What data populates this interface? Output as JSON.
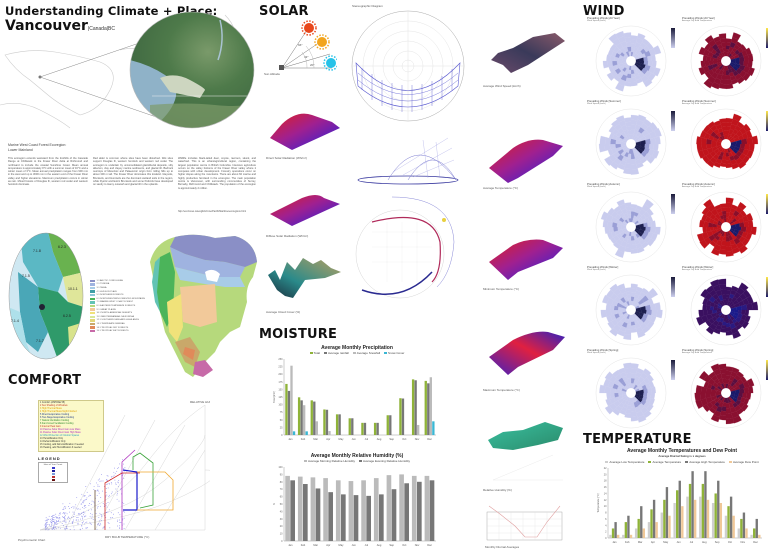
{
  "header": {
    "title": "Understanding Climate + Place:",
    "city": "Vancouver",
    "region": "|Canada|BC"
  },
  "ecoregion": {
    "heading_line1": "Marine West Coast Forest Ecoregion:",
    "heading_line2": "Lower Mainland",
    "columns": [
      "This ecoregion extends westward from the foothills of the Cascade Range at Chilliwack to the Fraser River delta at Richmond and northward to include the coastal Sunshine Coast. Mean annual temperature is approximately 9°C with a summer mean of 16°C and a winter mean of 3°C. Mean annual precipitation ranges from 900 mm in the west and up to 3000 mm in the eastern end of the Fraser River valley and higher elevations. Maximum precipitation occurs in winter as rain. Mixed forests of Douglas fir, western red cedar and western hemlock dominate.",
      "Red alder is common where sites have been disturbed. Wet sites support Douglas fir, western hemlock and western red cedar. The ecoregion is underlain by unconsolidated glaciofluvial deposits, silty alluvium, clay and clayey marine sediments, and glacial till. Bedrock outcrops of Mesozoic and Palaeozoic origin form rolling hills up to about 300 m tall. The Fraser River dominates this lowland. Gleysols, Brunisols, and Humisols are the dominant wetland soils in the region, while Dystric and Eutric Brunisols and some Podzols have developed on sandy to loamy outwash and glacial till in the uplands.",
      "Wildlife includes black-tailed deer, coyote, raccoon, skunk, and waterfowl. This is an urban/agricultural region, containing the largest population centre in British Columbia. Intensive agriculture occurs on the valley bottoms of the Fraser River valley where it competes with urban development. Forestry operations occur on higher slopes along the mountains. There are about 60 marine and highly productive farmland in the ecoregion. The main population centre is Vancouver, with surrounding communities of Surrey, Burnaby, Richmond and Chilliwack. The population of the ecoregion is approximately 2 million."
    ],
    "source_note": "http://ecozones.ca/english/zone/PacificMaritime/ecoregions.html"
  },
  "ecozone_map": {
    "zones": [
      "7.1.8",
      "6.2.3",
      "6.2.5",
      "10.1.1",
      "7.1.5",
      "7.1.7",
      "7.1.4"
    ],
    "legend": [
      {
        "label": "1.1 ARCTIC CORDILLERA",
        "color": "#8a8fc6"
      },
      {
        "label": "2.1 TUNDRA",
        "color": "#9fb3e0"
      },
      {
        "label": "3.1 TAIGA",
        "color": "#a8cce8"
      },
      {
        "label": "4.1 HUDSON PLAIN",
        "color": "#3f9fa6"
      },
      {
        "label": "5.1 NORTHERN FORESTS",
        "color": "#8cc9d9"
      },
      {
        "label": "6.1 NORTHWESTERN FORESTED MOUNTAINS",
        "color": "#4bb45a"
      },
      {
        "label": "7.1 MARINE WEST COAST FOREST",
        "color": "#62c3b5"
      },
      {
        "label": "8.1 EASTERN TEMPERATE FORESTS",
        "color": "#b6d97c"
      },
      {
        "label": "9.1 GREAT PLAINS",
        "color": "#f2c99a"
      },
      {
        "label": "10.1 NORTH AMERICAN DESERTS",
        "color": "#f0e27a"
      },
      {
        "label": "11.1 MEDITERRANEAN CALIFORNIA",
        "color": "#d9e89a"
      },
      {
        "label": "12.1 SOUTHERN SEMI-ARID HIGHLANDS",
        "color": "#e3d77a"
      },
      {
        "label": "13.1 TEMPERATE SIERRAS",
        "color": "#c9a86a"
      },
      {
        "label": "14.1 TROPICAL DRY FORESTS",
        "color": "#e08a5a"
      },
      {
        "label": "15.1 TROPICAL WET FORESTS",
        "color": "#c76aa8"
      }
    ]
  },
  "sections": {
    "comfort": "COMFORT",
    "solar": "SOLAR",
    "moisture": "MOISTURE",
    "wind": "WIND",
    "temperature": "TEMPERATURE"
  },
  "comfort": {
    "caption": "Psychrometric Chart",
    "legend_title": "LEGEND",
    "legend_sub": "Hour of Year Count",
    "strategies": [
      "1 Comfort (ASHRAE 55)",
      "2 Sun Shading of Windows",
      "3 High Thermal Mass",
      "4 High Thermal Mass Night Flushed",
      "5 Direct Evaporative Cooling",
      "6 Two-Stage Evaporative Cooling",
      "7 Natural Ventilation Cooling",
      "8 Fan-Forced Ventilation Cooling",
      "9 Internal Heat Gain",
      "10 Passive Solar Direct Gain Low Mass",
      "11 Passive Solar Direct Gain High Mass",
      "12 Wind Protection of Outdoor Spaces",
      "13 Humidification Only",
      "14 Dehumidification Only",
      "15 Cooling, add Dehumidification if needed",
      "16 Heating, add Humidification if needed"
    ],
    "relative_humidity_label": "RELATIVE HUMIDITY",
    "xlabel": "DRY BULB TEMPERATURE (°C)",
    "ylabel": "HUMIDITY RATIO"
  },
  "solar": {
    "altitude_caption": "Sun Altitude",
    "angles": [
      "66°",
      "43°",
      "20°"
    ],
    "sun_colors": [
      "#e8471c",
      "#f2a51e",
      "#27c2e8"
    ],
    "stereographic_title": "Stereographic Diagram",
    "surface_captions": [
      "Direct Solar Radiation (Wh/m²)",
      "Diffuse Solar Radiation (Wh/m²)",
      "Average Cloud Cover (%)"
    ]
  },
  "surfaces_mid": {
    "captions": [
      "Average Wind Speed (km/h)",
      "Average Temperature (°C)",
      "Minimum Temperature (°C)",
      "Maximum Temperature (°C)",
      "Relative Humidity (%)",
      "Monthly Diurnal Averages"
    ]
  },
  "wind": {
    "roses": [
      {
        "title": "Prevailing Winds [All Year]",
        "sub": "Wind Speed (km/h)",
        "style": "blue"
      },
      {
        "title": "Prevailing Winds [All Year]",
        "sub": "Average Dry Bulb Temperature",
        "style": "heat-dark"
      },
      {
        "title": "Prevailing Winds [Summer]",
        "sub": "Wind Speed (km/h)",
        "style": "blue"
      },
      {
        "title": "Prevailing Winds [Summer]",
        "sub": "Average Dry Bulb Temperature",
        "style": "heat"
      },
      {
        "title": "Prevailing Winds [Autumn]",
        "sub": "Wind Speed (km/h)",
        "style": "blue"
      },
      {
        "title": "Prevailing Winds [Autumn]",
        "sub": "Average Dry Bulb Temperature",
        "style": "heat"
      },
      {
        "title": "Prevailing Winds [Winter]",
        "sub": "Wind Speed (km/h)",
        "style": "blue"
      },
      {
        "title": "Prevailing Winds [Winter]",
        "sub": "Average Dry Bulb Temperature",
        "style": "cold"
      },
      {
        "title": "Prevailing Winds [Spring]",
        "sub": "Wind Speed (km/h)",
        "style": "blue"
      },
      {
        "title": "Prevailing Winds [Spring]",
        "sub": "Average Dry Bulb Temperature",
        "style": "heat-dark"
      }
    ]
  },
  "chart_data": [
    {
      "type": "bar",
      "title": "Average Monthly Precipitation",
      "categories": [
        "Jan",
        "Feb",
        "Mar",
        "Apr",
        "May",
        "Jun",
        "Jul",
        "Aug",
        "Sep",
        "Oct",
        "Nov",
        "Dec"
      ],
      "series": [
        {
          "name": "Total",
          "color": "#8fb339",
          "values": [
            168,
            124,
            114,
            84,
            68,
            55,
            40,
            40,
            65,
            121,
            183,
            178
          ]
        },
        {
          "name": "Average rainfall",
          "color": "#777777",
          "values": [
            145,
            114,
            110,
            83,
            68,
            55,
            40,
            40,
            65,
            120,
            180,
            170
          ]
        },
        {
          "name": "Average Snowfall",
          "color": "#bbbbbb",
          "values": [
            228,
            98,
            45,
            13,
            0,
            0,
            0,
            0,
            0,
            0,
            33,
            190
          ]
        },
        {
          "name": "Snow Cover",
          "color": "#3ab7d4",
          "values": [
            12,
            12,
            0,
            0,
            0,
            0,
            0,
            0,
            0,
            0,
            0,
            45
          ]
        }
      ],
      "xlabel": "",
      "ylabel": "Total (mm)",
      "ylim": [
        0,
        250
      ]
    },
    {
      "type": "bar",
      "title": "Average Monthly Relative Humidity (%)",
      "categories": [
        "Jan",
        "Feb",
        "Mar",
        "Apr",
        "May",
        "Jun",
        "Jul",
        "Aug",
        "Sep",
        "Oct",
        "Nov",
        "Dec"
      ],
      "series": [
        {
          "name": "Average Morning Relative Humidity",
          "color": "#bbbbbb",
          "values": [
            88,
            87,
            86,
            85,
            82,
            81,
            82,
            85,
            89,
            90,
            88,
            88
          ]
        },
        {
          "name": "Average Evening Relative Humidity",
          "color": "#777777",
          "values": [
            82,
            77,
            71,
            66,
            63,
            62,
            61,
            63,
            70,
            78,
            80,
            82
          ]
        }
      ],
      "ylabel": "%",
      "ylim": [
        0,
        100
      ]
    },
    {
      "type": "bar",
      "title": "Average Monthly Temperatures and Dew Point",
      "subtitle": "Average Diurnal Swing is x degrees",
      "categories": [
        "Jan",
        "Feb",
        "Mar",
        "Apr",
        "May",
        "Jun",
        "Jul",
        "Aug",
        "Sep",
        "Oct",
        "Nov",
        "Dec"
      ],
      "series": [
        {
          "name": "Average Low Temperature",
          "color": "#cfcfcf",
          "values": [
            1,
            1,
            3,
            5,
            8,
            11,
            13,
            13,
            11,
            7,
            3,
            1
          ]
        },
        {
          "name": "Average Temperature",
          "color": "#8fb339",
          "values": [
            3,
            5,
            6,
            9,
            12,
            15,
            17,
            17,
            14,
            10,
            6,
            3
          ]
        },
        {
          "name": "Average High Temperature",
          "color": "#777777",
          "values": [
            5,
            7,
            10,
            12,
            16,
            18,
            21,
            21,
            18,
            13,
            8,
            6
          ]
        },
        {
          "name": "Average Dew Point",
          "color": "#f0c898",
          "values": [
            1,
            1,
            3,
            5,
            7,
            10,
            12,
            12,
            11,
            7,
            3,
            1
          ]
        }
      ],
      "ylabel": "Temperature (°C)",
      "ylim": [
        0,
        22
      ]
    }
  ]
}
